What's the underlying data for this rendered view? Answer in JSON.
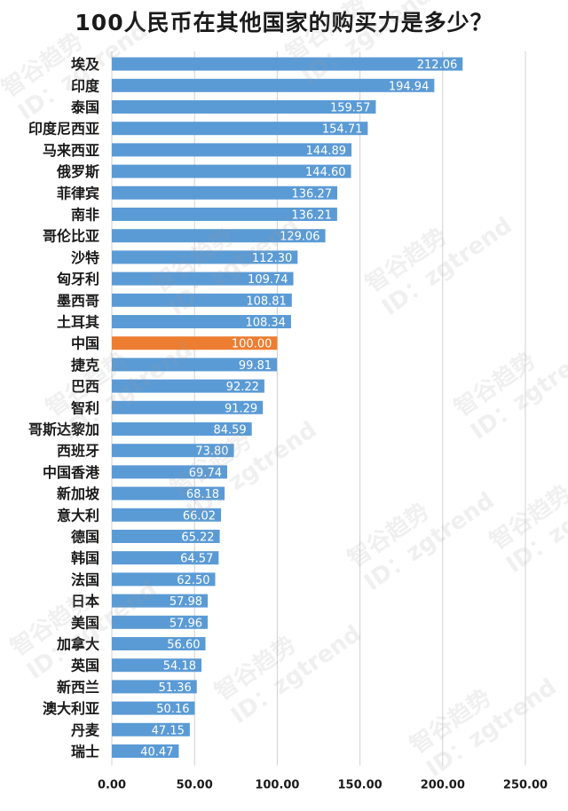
{
  "chart_data": {
    "type": "bar",
    "orientation": "horizontal",
    "title": "100人民币在其他国家的购买力是多少？",
    "categories": [
      "埃及",
      "印度",
      "泰国",
      "印度尼西亚",
      "马来西亚",
      "俄罗斯",
      "菲律宾",
      "南非",
      "哥伦比亚",
      "沙特",
      "匈牙利",
      "墨西哥",
      "土耳其",
      "中国",
      "捷克",
      "巴西",
      "智利",
      "哥斯达黎加",
      "西班牙",
      "中国香港",
      "新加坡",
      "意大利",
      "德国",
      "韩国",
      "法国",
      "日本",
      "美国",
      "加拿大",
      "英国",
      "新西兰",
      "澳大利亚",
      "丹麦",
      "瑞士"
    ],
    "values": [
      212.06,
      194.94,
      159.57,
      154.71,
      144.89,
      144.6,
      136.27,
      136.21,
      129.06,
      112.3,
      109.74,
      108.81,
      108.34,
      100.0,
      99.81,
      92.22,
      91.29,
      84.59,
      73.8,
      69.74,
      68.18,
      66.02,
      65.22,
      64.57,
      62.5,
      57.98,
      57.96,
      56.6,
      54.18,
      51.36,
      50.16,
      47.15,
      40.47
    ],
    "value_labels": [
      "212.06",
      "194.94",
      "159.57",
      "154.71",
      "144.89",
      "144.60",
      "136.27",
      "136.21",
      "129.06",
      "112.30",
      "109.74",
      "108.81",
      "108.34",
      "100.00",
      "99.81",
      "92.22",
      "91.29",
      "84.59",
      "73.80",
      "69.74",
      "68.18",
      "66.02",
      "65.22",
      "64.57",
      "62.50",
      "57.98",
      "57.96",
      "56.60",
      "54.18",
      "51.36",
      "50.16",
      "47.15",
      "40.47"
    ],
    "highlight_category": "中国",
    "xlim": [
      0,
      250
    ],
    "x_ticks": [
      "0.00",
      "50.00",
      "100.00",
      "150.00",
      "200.00",
      "250.00"
    ],
    "grid": true,
    "colors": {
      "bar": "#5b9bd5",
      "highlight": "#ed7d31"
    }
  },
  "watermark": {
    "name": "智谷趋势",
    "id": "ID：zgtrend"
  }
}
